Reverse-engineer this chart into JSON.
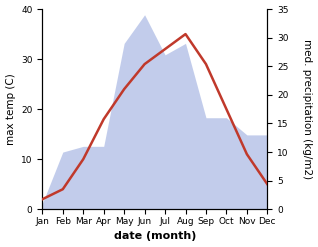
{
  "months": [
    "Jan",
    "Feb",
    "Mar",
    "Apr",
    "May",
    "Jun",
    "Jul",
    "Aug",
    "Sep",
    "Oct",
    "Nov",
    "Dec"
  ],
  "temp": [
    2,
    4,
    10,
    18,
    24,
    29,
    32,
    35,
    29,
    20,
    11,
    5
  ],
  "precip": [
    1,
    10,
    11,
    11,
    29,
    34,
    27,
    29,
    16,
    16,
    13,
    13
  ],
  "temp_color": "#c0392b",
  "precip_fill_color": "#b8c4e8",
  "temp_ylim": [
    0,
    40
  ],
  "precip_ylim": [
    0,
    35
  ],
  "temp_ylabel": "max temp (C)",
  "precip_ylabel": "med. precipitation (kg/m2)",
  "xlabel": "date (month)",
  "xlabel_fontsize": 8,
  "ylabel_fontsize": 7.5,
  "tick_fontsize": 6.5
}
